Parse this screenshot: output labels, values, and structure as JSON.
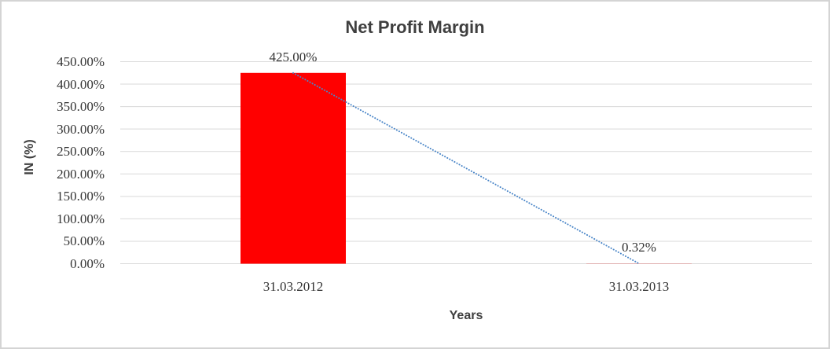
{
  "chart_data": {
    "type": "bar",
    "title": "Net Profit Margin",
    "xlabel": "Years",
    "ylabel": "IN (%)",
    "categories": [
      "31.03.2012",
      "31.03.2013"
    ],
    "series": [
      {
        "name": "Net Profit Margin",
        "values": [
          425.0,
          0.32
        ]
      }
    ],
    "data_labels": [
      "425.00%",
      "0.32%"
    ],
    "y_ticks": [
      "450.00%",
      "400.00%",
      "350.00%",
      "300.00%",
      "250.00%",
      "200.00%",
      "150.00%",
      "100.00%",
      "50.00%",
      "0.00%"
    ],
    "ylim": [
      0,
      450
    ],
    "y_tick_step": 50,
    "grid": true,
    "legend": "none",
    "trendline": {
      "type": "linear",
      "style": "dotted",
      "from": 425.0,
      "to": 0.32
    },
    "colors": {
      "bar": "#ff0000",
      "trendline": "#4a86c8",
      "gridline": "#d9d9d9"
    }
  }
}
